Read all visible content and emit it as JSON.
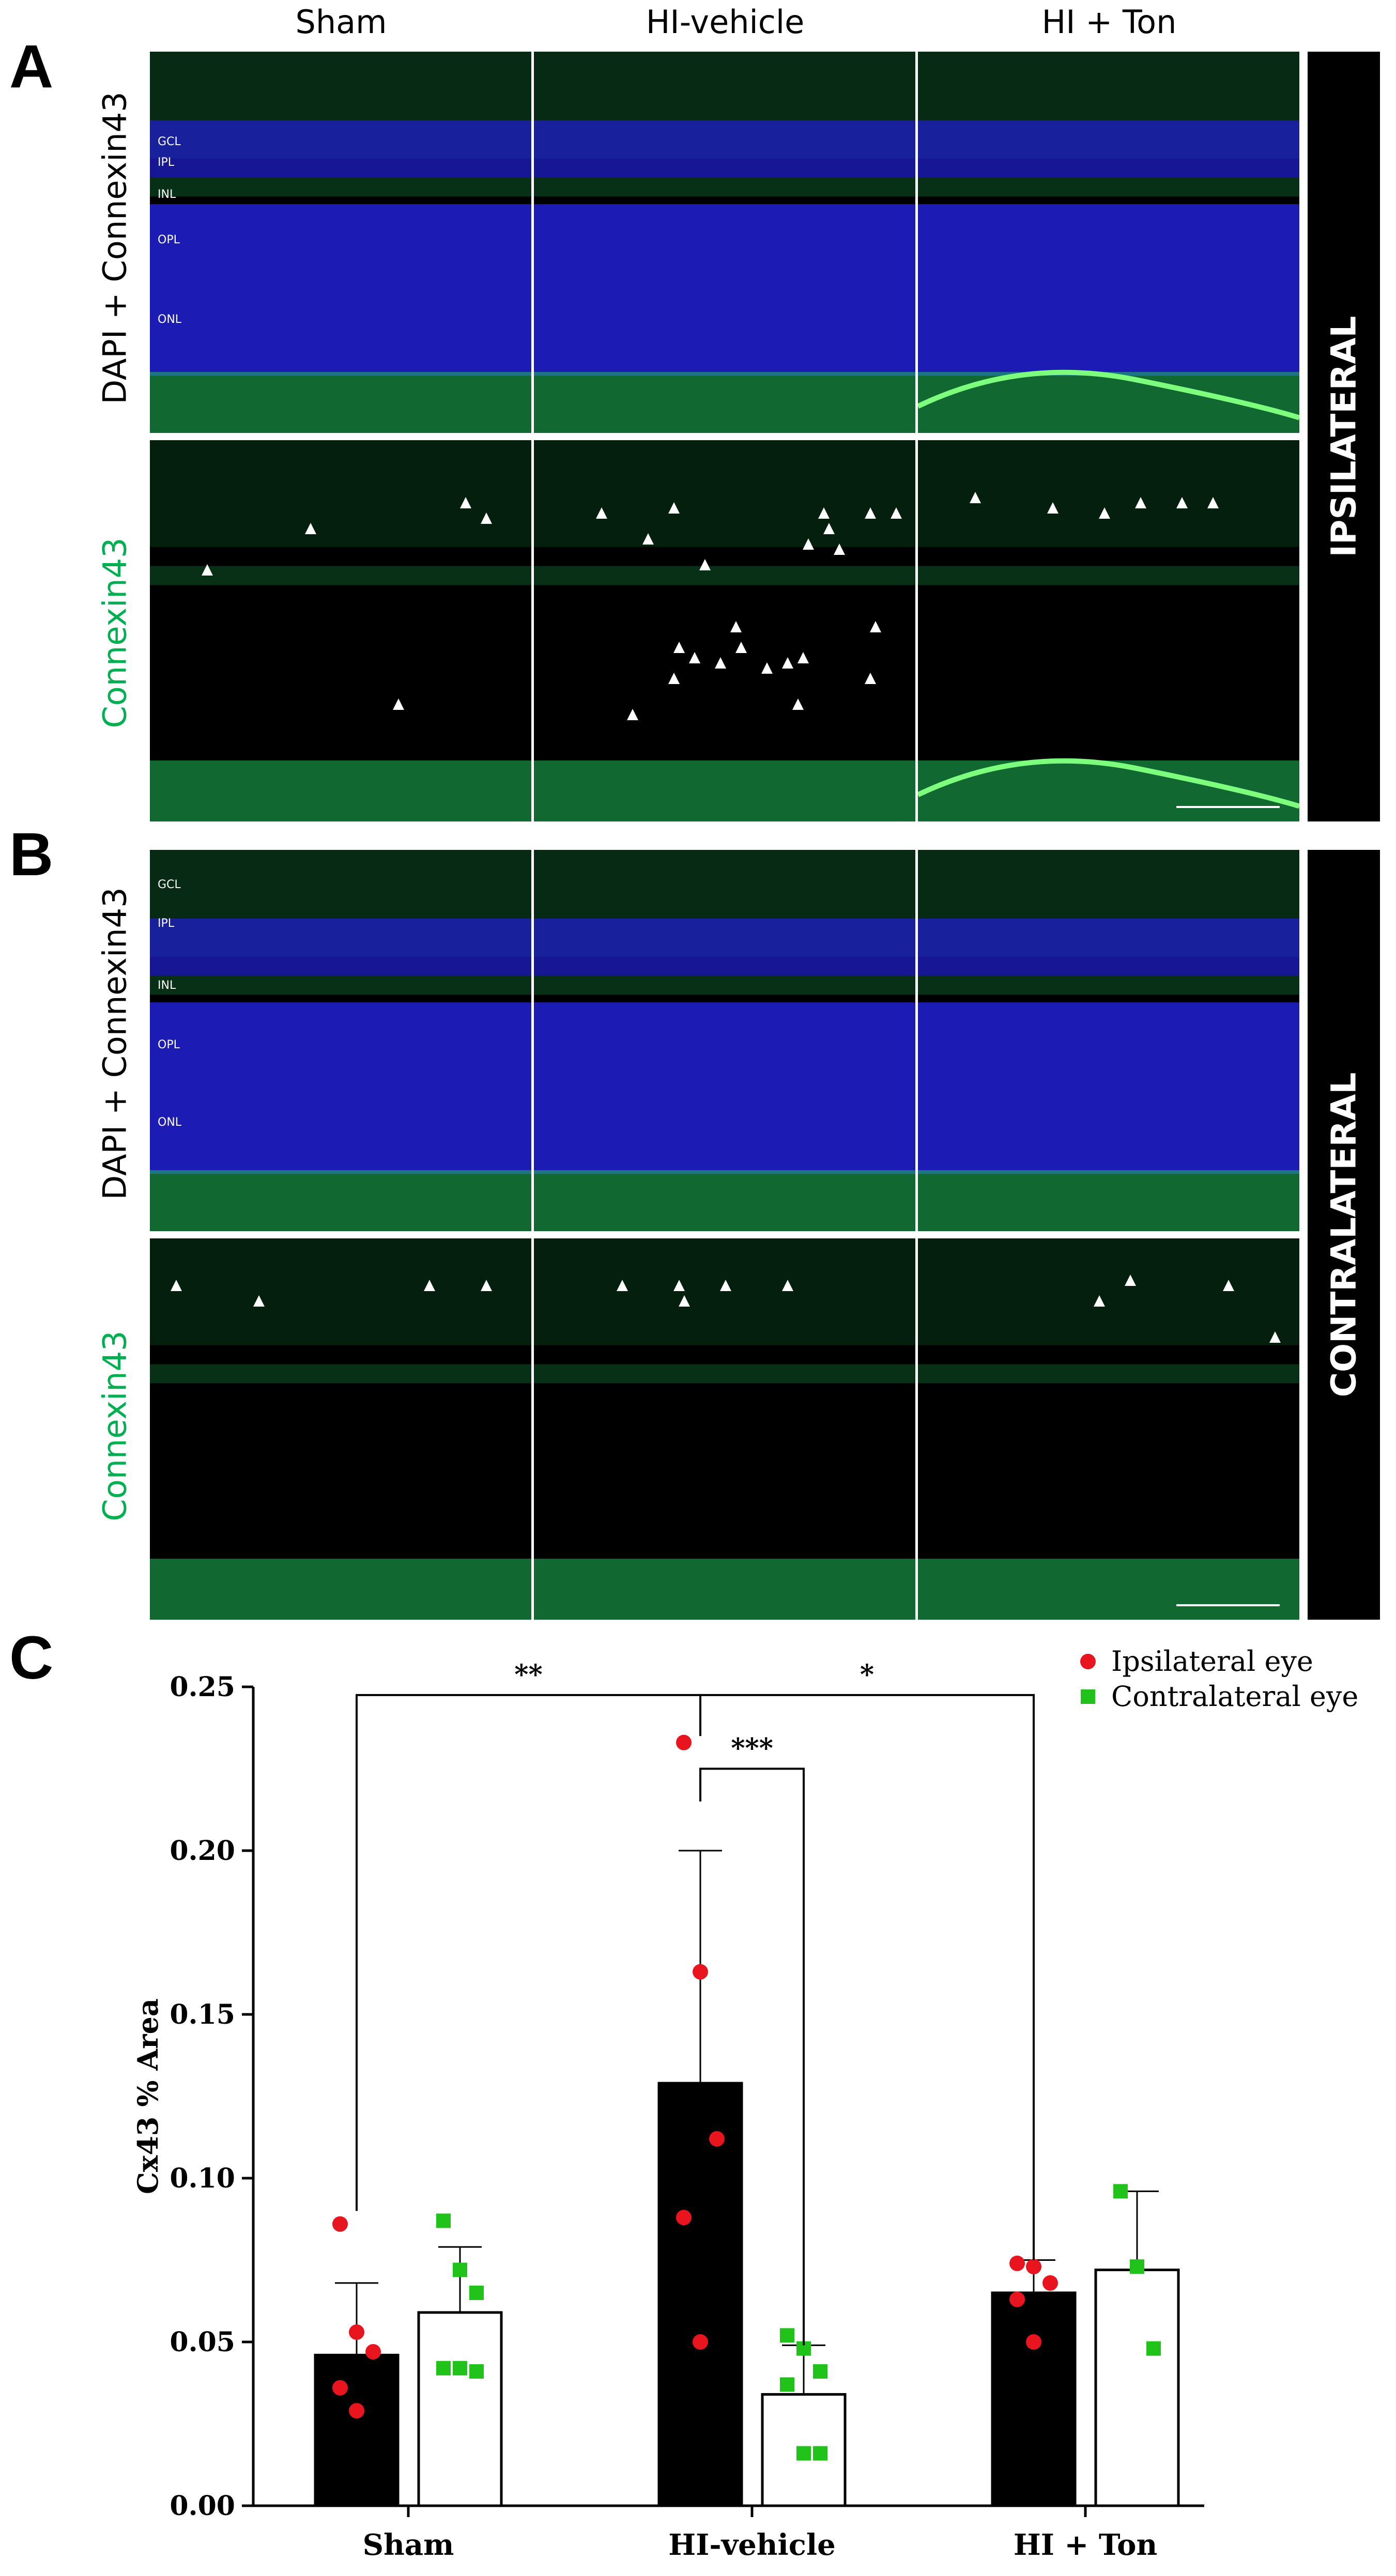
{
  "panels": {
    "a": {
      "letter": "A"
    },
    "b": {
      "letter": "B"
    },
    "c": {
      "letter": "C"
    }
  },
  "columns": [
    "Sham",
    "HI-vehicle",
    "HI + Ton"
  ],
  "row_labels": {
    "merge": "DAPI + Connexin43",
    "single": "Connexin43"
  },
  "side_labels": {
    "ipsilateral": "IPSILATERAL",
    "contralateral": "CONTRALATERAL"
  },
  "layer_labels": {
    "panel_a": [
      "GCL",
      "IPL",
      "INL",
      "OPL",
      "ONL"
    ],
    "panel_b": [
      "GCL",
      "IPL",
      "INL",
      "OPL",
      "ONL"
    ]
  },
  "colors": {
    "dapi_blue": "#1f1fc8",
    "connexin_green": "#1fbf5a",
    "label_green": "#00b050",
    "ipsilateral_red": "#e8141e",
    "contralateral_green": "#21c31b",
    "bar_black": "#000000"
  },
  "chart_data": {
    "type": "bar",
    "categories": [
      "Sham",
      "HI-vehicle",
      "HI + Ton"
    ],
    "ylabel": "Cx43 % Area",
    "ylim": [
      0,
      0.25
    ],
    "yticks": [
      "0.00",
      "0.05",
      "0.10",
      "0.15",
      "0.20",
      "0.25"
    ],
    "legend_position": "top-right",
    "series": [
      {
        "name": "Ipsilateral eye",
        "marker": "circle",
        "color": "#e8141e",
        "bar_fill": "#000000",
        "means": [
          0.046,
          0.129,
          0.065
        ],
        "sd": [
          0.022,
          0.071,
          0.01
        ],
        "points": [
          [
            0.086,
            0.053,
            0.047,
            0.036,
            0.029
          ],
          [
            0.233,
            0.163,
            0.112,
            0.088,
            0.05
          ],
          [
            0.074,
            0.073,
            0.068,
            0.063,
            0.05
          ]
        ]
      },
      {
        "name": "Contralateral eye",
        "marker": "square",
        "color": "#21c31b",
        "bar_fill": "#ffffff",
        "means": [
          0.059,
          0.034,
          0.072
        ],
        "sd": [
          0.02,
          0.015,
          0.024
        ],
        "points": [
          [
            0.087,
            0.072,
            0.065,
            0.042,
            0.042,
            0.041
          ],
          [
            0.052,
            0.048,
            0.041,
            0.037,
            0.016,
            0.016
          ],
          [
            0.096,
            0.073,
            0.048
          ]
        ]
      }
    ],
    "significance": [
      {
        "from": "Sham ipsilateral",
        "to": "HI-vehicle ipsilateral",
        "label": "**"
      },
      {
        "from": "HI-vehicle ipsilateral",
        "to": "HI + Ton ipsilateral",
        "label": "*"
      },
      {
        "from": "HI-vehicle ipsilateral",
        "to": "HI-vehicle contralateral",
        "label": "***"
      }
    ]
  }
}
